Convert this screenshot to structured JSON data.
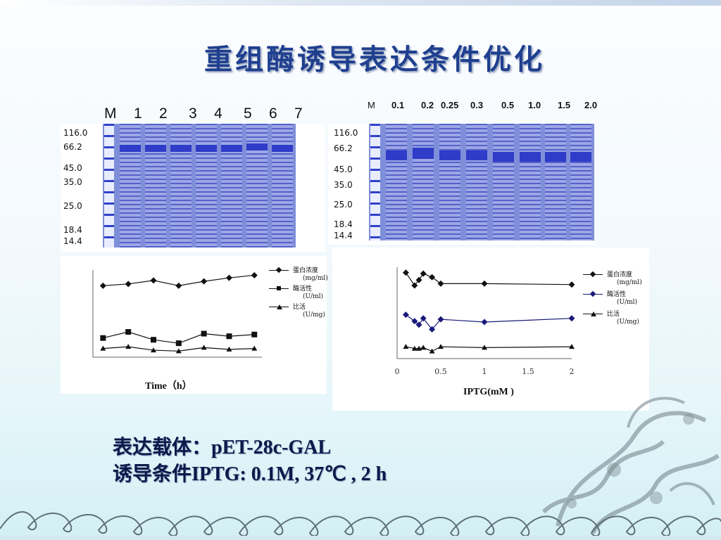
{
  "title": "重组酶诱导表达条件优化",
  "gel1": {
    "lane_labels": [
      "M",
      "1",
      "2",
      "3",
      "4",
      "5",
      "6",
      "7"
    ],
    "markers": [
      "116.0",
      "66.2",
      "45.0",
      "35.0",
      "25.0",
      "18.4",
      "14.4"
    ]
  },
  "gel2": {
    "lane_labels": [
      "M",
      "0.1",
      "0.2",
      "0.25",
      "0.3",
      "0.5",
      "1.0",
      "1.5",
      "2.0"
    ],
    "markers": [
      "116.0",
      "66.2",
      "45.0",
      "35.0",
      "25.0",
      "18.4",
      "14.4"
    ]
  },
  "chart_data": [
    {
      "type": "line",
      "xlabel": "Time（h）",
      "ylabel": "",
      "x": [
        1,
        2,
        3,
        4,
        5,
        6,
        7
      ],
      "series": [
        {
          "name": "蛋白浓度",
          "unit": "(mg/ml)",
          "marker": "diamond",
          "values": [
            0.82,
            0.84,
            0.88,
            0.82,
            0.87,
            0.91,
            0.94
          ]
        },
        {
          "name": "酶活性",
          "unit": "(U/ml)",
          "marker": "square",
          "values": [
            0.22,
            0.29,
            0.2,
            0.16,
            0.27,
            0.24,
            0.26
          ]
        },
        {
          "name": "比活",
          "unit": "(U/mg)",
          "marker": "triangle",
          "values": [
            0.1,
            0.12,
            0.08,
            0.07,
            0.11,
            0.09,
            0.1
          ]
        }
      ],
      "ylim": [
        0,
        1
      ],
      "legend": "right"
    },
    {
      "type": "line",
      "xlabel": "IPTG(mM )",
      "ylabel": "",
      "x": [
        0.1,
        0.2,
        0.25,
        0.3,
        0.4,
        0.5,
        1,
        2
      ],
      "xticks": [
        "0",
        "0.5",
        "1",
        "1.5",
        "2"
      ],
      "xlim": [
        0,
        2
      ],
      "series": [
        {
          "name": "蛋白浓度",
          "unit": "(mg/ml)",
          "marker": "diamond",
          "values": [
            0.94,
            0.8,
            0.86,
            0.93,
            0.89,
            0.82,
            0.82,
            0.81
          ]
        },
        {
          "name": "酶活性",
          "unit": "(U/ml)",
          "marker": "diamond",
          "values": [
            0.48,
            0.41,
            0.37,
            0.44,
            0.32,
            0.43,
            0.4,
            0.44
          ]
        },
        {
          "name": "比活",
          "unit": "(U/mg)",
          "marker": "triangle",
          "values": [
            0.13,
            0.11,
            0.11,
            0.12,
            0.08,
            0.13,
            0.12,
            0.13
          ]
        }
      ],
      "ylim": [
        0,
        1
      ],
      "legend": "right"
    }
  ],
  "bottom": {
    "vector": "表达载体：pET-28c-GAL",
    "conditions": "诱导条件IPTG: 0.1M, 37℃ , 2 h"
  }
}
